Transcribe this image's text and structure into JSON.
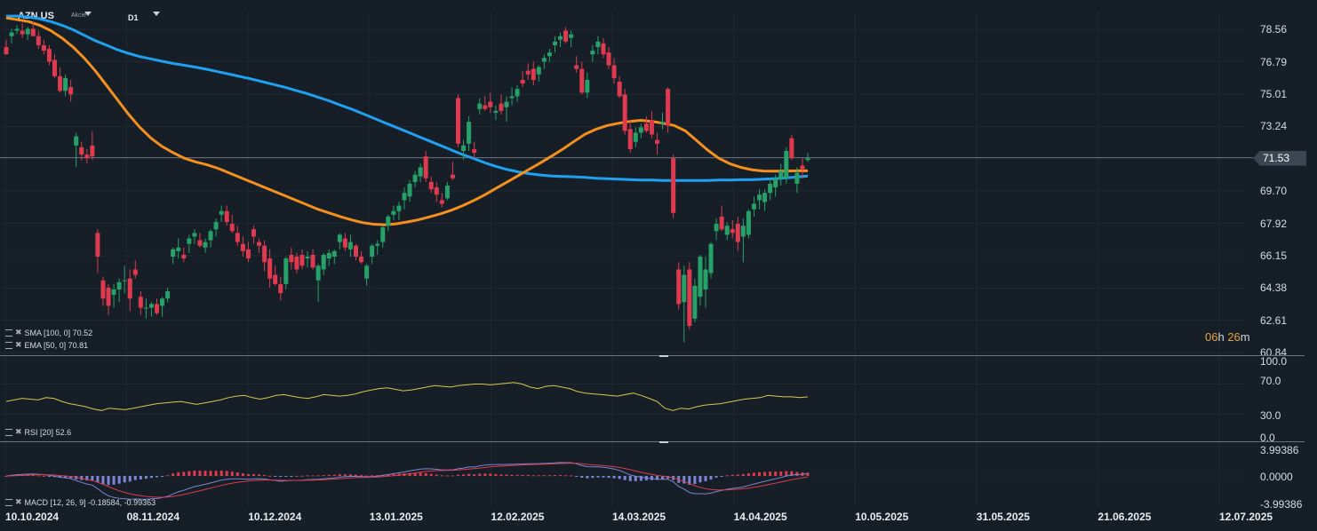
{
  "header": {
    "symbol": "AZN.US",
    "symbol_type": "Akcie",
    "timeframe": "D1"
  },
  "price_axis": [
    "78.56",
    "76.79",
    "75.01",
    "73.24",
    "71.53",
    "69.70",
    "67.92",
    "66.15",
    "64.38",
    "62.61",
    "60.84"
  ],
  "current_price": "71.53",
  "countdown": {
    "h": "06",
    "h_unit": "h",
    "m": "26",
    "m_unit": "m"
  },
  "indicators": {
    "sma_label": "SMA [100, 0] 70.52",
    "ema_label": "EMA [50, 0] 70.81",
    "rsi_label": "RSI [20] 52.6",
    "macd_label": "MACD [12, 26, 9] -0.18584, -0.99363"
  },
  "rsi_axis": [
    "100.0",
    "70.0",
    "30.0",
    "0.0"
  ],
  "macd_axis": [
    "3.99386",
    "0.0000",
    "-3.99386"
  ],
  "x_axis": [
    "10.10.2024",
    "08.11.2024",
    "10.12.2024",
    "13.01.2025",
    "12.02.2025",
    "14.03.2025",
    "14.04.2025",
    "10.05.2025",
    "31.05.2025",
    "21.06.2025",
    "12.07.2025"
  ],
  "colors": {
    "up": "#26a269",
    "down": "#e03a4e",
    "sma": "#1fa0f0",
    "ema": "#f5901e",
    "rsi": "#d8c84a",
    "macd": "#7b86d6",
    "signal": "#e03a4e"
  },
  "chart_data": {
    "type": "candlestick",
    "ylim": [
      60.84,
      79.5
    ],
    "candles": [
      [
        77.6,
        78.0,
        77.2,
        77.2
      ],
      [
        78.2,
        78.6,
        77.8,
        78.4
      ],
      [
        78.5,
        78.8,
        78.3,
        78.6
      ],
      [
        78.5,
        78.9,
        78.1,
        78.3
      ],
      [
        78.3,
        78.7,
        78.0,
        78.6
      ],
      [
        78.6,
        79.0,
        78.2,
        78.2
      ],
      [
        78.2,
        78.5,
        77.5,
        77.7
      ],
      [
        77.7,
        78.0,
        77.2,
        77.4
      ],
      [
        77.5,
        77.7,
        76.6,
        76.8
      ],
      [
        76.9,
        77.2,
        75.9,
        76.0
      ],
      [
        76.0,
        76.5,
        75.1,
        75.2
      ],
      [
        75.2,
        76.1,
        74.9,
        75.9
      ],
      [
        75.4,
        75.8,
        74.6,
        75.0
      ],
      [
        72.2,
        72.9,
        71.0,
        72.7
      ],
      [
        72.1,
        72.4,
        71.4,
        71.7
      ],
      [
        71.7,
        72.0,
        71.2,
        71.5
      ],
      [
        72.2,
        73.0,
        71.4,
        71.6
      ],
      [
        67.4,
        67.6,
        65.2,
        66.1
      ],
      [
        64.8,
        65.0,
        63.4,
        63.8
      ],
      [
        64.4,
        64.6,
        62.9,
        63.4
      ],
      [
        64.0,
        64.6,
        63.3,
        64.3
      ],
      [
        64.3,
        64.9,
        63.6,
        64.7
      ],
      [
        64.8,
        65.6,
        64.1,
        64.8
      ],
      [
        64.9,
        65.4,
        63.1,
        63.8
      ],
      [
        65.4,
        65.9,
        64.9,
        65.1
      ],
      [
        63.9,
        64.2,
        62.9,
        63.3
      ],
      [
        63.3,
        63.8,
        62.7,
        63.3
      ],
      [
        63.3,
        63.6,
        62.8,
        63.5
      ],
      [
        63.5,
        63.8,
        62.9,
        63.0
      ],
      [
        63.4,
        63.9,
        62.8,
        63.8
      ],
      [
        63.8,
        64.4,
        63.6,
        64.2
      ],
      [
        66.1,
        66.6,
        65.7,
        66.5
      ],
      [
        66.4,
        67.1,
        66.0,
        66.6
      ],
      [
        66.2,
        66.6,
        65.8,
        66.0
      ],
      [
        66.8,
        67.3,
        66.3,
        67.1
      ],
      [
        67.2,
        67.6,
        66.8,
        67.4
      ],
      [
        67.0,
        67.4,
        66.6,
        66.7
      ],
      [
        66.6,
        67.1,
        66.3,
        66.9
      ],
      [
        67.0,
        67.6,
        66.6,
        67.5
      ],
      [
        67.6,
        68.2,
        67.2,
        68.0
      ],
      [
        68.4,
        68.9,
        68.0,
        68.6
      ],
      [
        68.6,
        68.9,
        67.8,
        68.0
      ],
      [
        67.9,
        68.4,
        67.4,
        67.5
      ],
      [
        67.4,
        67.8,
        66.7,
        66.9
      ],
      [
        66.8,
        67.2,
        66.1,
        66.4
      ],
      [
        66.5,
        66.9,
        65.8,
        66.0
      ],
      [
        67.6,
        67.8,
        66.8,
        67.2
      ],
      [
        66.9,
        67.1,
        66.3,
        66.7
      ],
      [
        66.7,
        67.0,
        65.3,
        65.8
      ],
      [
        66.0,
        66.5,
        64.4,
        64.9
      ],
      [
        65.1,
        65.6,
        64.5,
        64.6
      ],
      [
        64.6,
        65.0,
        63.7,
        64.1
      ],
      [
        64.6,
        66.1,
        64.3,
        66.0
      ],
      [
        66.2,
        66.6,
        65.4,
        65.8
      ],
      [
        66.1,
        66.3,
        65.2,
        65.4
      ],
      [
        66.2,
        66.5,
        65.4,
        65.6
      ],
      [
        66.0,
        66.4,
        65.5,
        66.1
      ],
      [
        66.2,
        66.5,
        65.4,
        65.5
      ],
      [
        64.8,
        65.7,
        63.6,
        65.6
      ],
      [
        65.4,
        66.3,
        65.1,
        66.2
      ],
      [
        66.0,
        66.5,
        65.6,
        66.3
      ],
      [
        66.1,
        66.5,
        65.7,
        66.4
      ],
      [
        66.9,
        67.4,
        66.5,
        67.3
      ],
      [
        67.1,
        67.4,
        66.4,
        66.6
      ],
      [
        66.5,
        67.3,
        66.1,
        66.9
      ],
      [
        66.7,
        66.8,
        65.9,
        66.1
      ],
      [
        66.1,
        66.4,
        65.7,
        65.8
      ],
      [
        64.9,
        65.7,
        64.5,
        65.6
      ],
      [
        66.1,
        66.8,
        65.7,
        66.7
      ],
      [
        66.7,
        67.0,
        66.2,
        66.8
      ],
      [
        66.9,
        67.8,
        66.6,
        67.7
      ],
      [
        67.8,
        68.4,
        67.5,
        68.3
      ],
      [
        68.4,
        68.9,
        68.1,
        68.6
      ],
      [
        68.6,
        69.1,
        68.1,
        68.9
      ],
      [
        69.2,
        69.9,
        68.7,
        69.6
      ],
      [
        69.4,
        70.3,
        69.1,
        70.1
      ],
      [
        70.2,
        70.8,
        69.9,
        70.6
      ],
      [
        70.5,
        71.2,
        70.2,
        71.0
      ],
      [
        71.6,
        71.9,
        70.2,
        70.4
      ],
      [
        70.2,
        70.5,
        69.6,
        69.8
      ],
      [
        69.9,
        70.2,
        69.1,
        69.5
      ],
      [
        69.2,
        69.6,
        68.8,
        69.0
      ],
      [
        69.3,
        70.2,
        69.2,
        70.0
      ],
      [
        70.6,
        71.3,
        70.3,
        70.4
      ],
      [
        74.8,
        75.0,
        72.1,
        72.3
      ],
      [
        71.9,
        72.5,
        71.4,
        72.2
      ],
      [
        72.3,
        73.8,
        71.9,
        73.5
      ],
      [
        72.0,
        72.4,
        71.5,
        71.8
      ],
      [
        74.2,
        74.8,
        73.9,
        74.5
      ],
      [
        74.4,
        74.9,
        74.1,
        74.2
      ],
      [
        74.6,
        75.1,
        74.0,
        74.3
      ],
      [
        74.0,
        74.4,
        73.6,
        74.1
      ],
      [
        74.5,
        75.0,
        73.9,
        74.1
      ],
      [
        74.3,
        74.9,
        73.5,
        74.6
      ],
      [
        74.8,
        75.4,
        74.4,
        74.9
      ],
      [
        74.9,
        75.5,
        74.6,
        75.3
      ],
      [
        75.8,
        76.3,
        75.4,
        75.6
      ],
      [
        76.3,
        76.7,
        75.8,
        76.1
      ],
      [
        76.4,
        76.8,
        75.5,
        75.8
      ],
      [
        76.1,
        76.6,
        75.7,
        76.5
      ],
      [
        76.8,
        77.2,
        76.4,
        77.0
      ],
      [
        77.1,
        77.5,
        76.8,
        77.3
      ],
      [
        77.7,
        78.2,
        77.3,
        77.9
      ],
      [
        78.0,
        78.4,
        77.6,
        78.2
      ],
      [
        78.5,
        78.7,
        77.8,
        77.9
      ],
      [
        78.1,
        78.5,
        77.6,
        78.3
      ],
      [
        76.6,
        77.1,
        76.2,
        76.4
      ],
      [
        76.4,
        76.8,
        75.0,
        75.1
      ],
      [
        75.1,
        76.2,
        74.8,
        75.8
      ],
      [
        77.2,
        77.7,
        76.8,
        77.4
      ],
      [
        77.6,
        78.2,
        77.2,
        77.9
      ],
      [
        77.8,
        78.1,
        77.0,
        77.2
      ],
      [
        77.3,
        77.6,
        76.4,
        76.6
      ],
      [
        76.6,
        77.0,
        75.6,
        75.9
      ],
      [
        75.7,
        76.0,
        74.8,
        74.9
      ],
      [
        75.0,
        75.3,
        72.8,
        73.0
      ],
      [
        73.1,
        73.6,
        71.8,
        72.0
      ],
      [
        72.4,
        73.2,
        72.1,
        72.9
      ],
      [
        72.9,
        73.4,
        72.6,
        73.2
      ],
      [
        73.4,
        73.8,
        72.9,
        73.0
      ],
      [
        73.6,
        74.1,
        72.6,
        72.8
      ],
      [
        72.5,
        72.9,
        71.7,
        72.3
      ],
      [
        73.4,
        74.0,
        73.1,
        73.5
      ],
      [
        75.3,
        75.4,
        72.9,
        73.3
      ],
      [
        71.5,
        71.7,
        68.2,
        68.5
      ],
      [
        65.4,
        65.8,
        63.2,
        63.5
      ],
      [
        63.6,
        65.6,
        61.4,
        65.1
      ],
      [
        65.4,
        65.8,
        62.1,
        62.3
      ],
      [
        62.7,
        64.9,
        62.5,
        64.5
      ],
      [
        63.9,
        66.2,
        63.4,
        66.1
      ],
      [
        64.3,
        66.1,
        63.3,
        65.4
      ],
      [
        65.2,
        66.9,
        64.9,
        66.8
      ],
      [
        67.5,
        68.2,
        67.0,
        67.9
      ],
      [
        68.3,
        68.9,
        67.5,
        67.6
      ],
      [
        67.3,
        68.0,
        67.0,
        67.8
      ],
      [
        67.6,
        68.1,
        67.1,
        67.4
      ],
      [
        67.9,
        68.3,
        66.4,
        66.9
      ],
      [
        67.2,
        68.2,
        65.8,
        67.8
      ],
      [
        67.3,
        68.7,
        67.1,
        68.6
      ],
      [
        68.7,
        69.4,
        68.3,
        69.0
      ],
      [
        69.2,
        69.8,
        68.7,
        69.5
      ],
      [
        69.1,
        69.8,
        68.6,
        69.6
      ],
      [
        69.6,
        70.4,
        69.2,
        70.1
      ],
      [
        69.9,
        70.6,
        69.4,
        70.4
      ],
      [
        70.4,
        71.2,
        70.0,
        70.8
      ],
      [
        70.4,
        72.1,
        70.1,
        71.9
      ],
      [
        72.6,
        72.8,
        71.4,
        71.5
      ],
      [
        70.1,
        71.0,
        69.6,
        70.7
      ],
      [
        71.1,
        71.5,
        70.4,
        70.9
      ],
      [
        71.4,
        71.8,
        71.3,
        71.5
      ]
    ],
    "sma": [
      79.3,
      79.3,
      79.25,
      79.15,
      79.0,
      78.8,
      78.55,
      78.25,
      77.95,
      77.7,
      77.45,
      77.25,
      77.08,
      76.95,
      76.82,
      76.7,
      76.6,
      76.5,
      76.38,
      76.25,
      76.12,
      75.98,
      75.85,
      75.7,
      75.55,
      75.4,
      75.22,
      75.05,
      74.85,
      74.65,
      74.42,
      74.2,
      73.95,
      73.7,
      73.45,
      73.2,
      72.95,
      72.7,
      72.45,
      72.2,
      71.95,
      71.7,
      71.48,
      71.25,
      71.05,
      70.88,
      70.75,
      70.65,
      70.58,
      70.52,
      70.5,
      70.48,
      70.45,
      70.4,
      70.38,
      70.35,
      70.33,
      70.3,
      70.3,
      70.28,
      70.28,
      70.28,
      70.28,
      70.28,
      70.3,
      70.3,
      70.32,
      70.32,
      70.35,
      70.38,
      70.42,
      70.47,
      70.52
    ],
    "ema": [
      79.2,
      79.1,
      79.0,
      78.8,
      78.5,
      78.1,
      77.6,
      77.0,
      76.3,
      75.5,
      74.7,
      73.9,
      73.2,
      72.6,
      72.15,
      71.8,
      71.5,
      71.3,
      71.15,
      70.95,
      70.7,
      70.45,
      70.2,
      69.95,
      69.7,
      69.45,
      69.2,
      68.95,
      68.7,
      68.5,
      68.3,
      68.12,
      67.97,
      67.88,
      67.85,
      67.9,
      68.0,
      68.12,
      68.28,
      68.45,
      68.65,
      68.9,
      69.18,
      69.5,
      69.85,
      70.2,
      70.55,
      70.9,
      71.25,
      71.62,
      72.0,
      72.42,
      72.82,
      73.1,
      73.3,
      73.42,
      73.52,
      73.58,
      73.52,
      73.42,
      73.3,
      73.0,
      72.48,
      71.95,
      71.5,
      71.2,
      71.0,
      70.86,
      70.8,
      70.79,
      70.8,
      70.81,
      70.81
    ],
    "rsi": [
      47,
      49,
      51,
      50,
      49,
      52,
      51,
      47,
      44,
      42,
      40,
      37,
      35,
      38,
      37,
      36,
      38,
      40,
      42,
      44,
      45,
      46,
      47,
      45,
      43,
      45,
      47,
      49,
      52,
      54,
      55,
      52,
      50,
      52,
      55,
      56,
      54,
      52,
      51,
      53,
      56,
      55,
      54,
      55,
      57,
      60,
      62,
      64,
      65,
      63,
      61,
      62,
      64,
      66,
      68,
      67,
      66,
      68,
      69,
      70,
      70,
      69,
      70,
      71,
      72,
      70,
      66,
      64,
      67,
      68,
      66,
      64,
      60,
      58,
      57,
      56,
      55,
      54,
      56,
      58,
      55,
      51,
      47,
      38,
      35,
      38,
      37,
      40,
      42,
      43,
      44,
      46,
      48,
      50,
      51,
      52,
      55,
      54,
      53,
      53,
      52,
      53
    ]
  }
}
